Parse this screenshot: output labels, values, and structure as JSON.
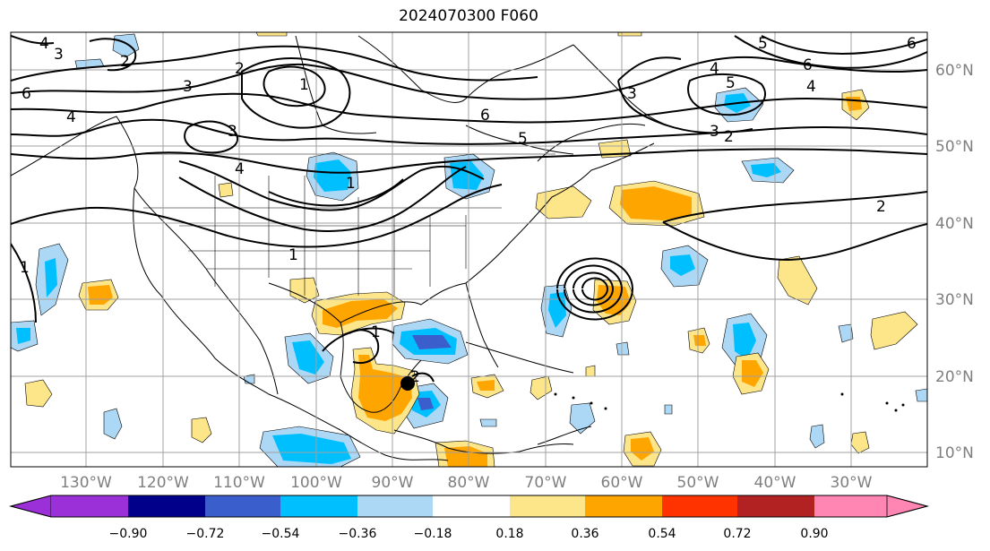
{
  "title": "2024070300 F060",
  "lon_labels": [
    "130°W",
    "120°W",
    "110°W",
    "100°W",
    "90°W",
    "80°W",
    "70°W",
    "60°W",
    "50°W",
    "40°W",
    "30°W"
  ],
  "lat_labels": [
    "60°N",
    "50°N",
    "40°N",
    "30°N",
    "20°N",
    "10°N"
  ],
  "colorbar": {
    "colors": [
      "#9b30d9",
      "#00008b",
      "#3a5fcd",
      "#00bfff",
      "#add8f5",
      "#ffffff",
      "#fde68a",
      "#ffa500",
      "#ff3300",
      "#b22222",
      "#ff85b3"
    ],
    "ticks": [
      "−0.90",
      "−0.72",
      "−0.54",
      "−0.36",
      "−0.18",
      "0.18",
      "0.36",
      "0.54",
      "0.72",
      "0.90"
    ]
  },
  "contour_labels": [
    "4",
    "3",
    "2",
    "6",
    "4",
    "3",
    "1",
    "2",
    "3",
    "4",
    "5",
    "6",
    "5",
    "2",
    "3",
    "6",
    "4",
    "5",
    "4",
    "6",
    "3",
    "2",
    "2",
    "1",
    "1",
    "1",
    "1"
  ],
  "marker": {
    "lon": -88,
    "lat": 19
  }
}
